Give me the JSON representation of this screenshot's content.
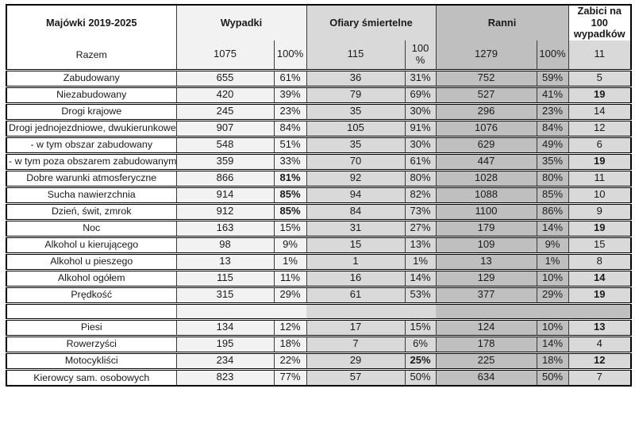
{
  "table": {
    "title_cell": "Majówki 2019-2025",
    "header": {
      "wypadki": "Wypadki",
      "ofiary": "Ofiary śmiertelne",
      "ranni": "Ranni",
      "zabici": "Zabici na 100 wypadków"
    },
    "colors": {
      "wypadki_bg": "#f2f2f2",
      "ofiary_bg": "#d9d9d9",
      "ranni_bg": "#bfbfbf",
      "zabici_bg": "#d9d9d9",
      "grid": "#3a3a3a",
      "frame": "#000000"
    },
    "rows": [
      {
        "label": "Razem",
        "wypadki": "1075",
        "wypadki_pct": "100%",
        "ofiary": "115",
        "ofiary_pct": "100\n%",
        "ranni": "1279",
        "ranni_pct": "100%",
        "zabici": "11",
        "bold": [],
        "razem": true
      },
      {
        "label": "Zabudowany",
        "wypadki": "655",
        "wypadki_pct": "61%",
        "ofiary": "36",
        "ofiary_pct": "31%",
        "ranni": "752",
        "ranni_pct": "59%",
        "zabici": "5",
        "bold": []
      },
      {
        "label": "Niezabudowany",
        "wypadki": "420",
        "wypadki_pct": "39%",
        "ofiary": "79",
        "ofiary_pct": "69%",
        "ranni": "527",
        "ranni_pct": "41%",
        "zabici": "19",
        "bold": [
          "zabici"
        ]
      },
      {
        "label": "Drogi krajowe",
        "wypadki": "245",
        "wypadki_pct": "23%",
        "ofiary": "35",
        "ofiary_pct": "30%",
        "ranni": "296",
        "ranni_pct": "23%",
        "zabici": "14",
        "bold": []
      },
      {
        "label": "Drogi jednojezdniowe, dwukierunkowe",
        "wypadki": "907",
        "wypadki_pct": "84%",
        "ofiary": "105",
        "ofiary_pct": "91%",
        "ranni": "1076",
        "ranni_pct": "84%",
        "zabici": "12",
        "bold": []
      },
      {
        "label": "- w tym obszar zabudowany",
        "wypadki": "548",
        "wypadki_pct": "51%",
        "ofiary": "35",
        "ofiary_pct": "30%",
        "ranni": "629",
        "ranni_pct": "49%",
        "zabici": "6",
        "bold": []
      },
      {
        "label": "- w tym poza obszarem zabudowanym",
        "wypadki": "359",
        "wypadki_pct": "33%",
        "ofiary": "70",
        "ofiary_pct": "61%",
        "ranni": "447",
        "ranni_pct": "35%",
        "zabici": "19",
        "bold": [
          "zabici"
        ]
      },
      {
        "label": "Dobre warunki atmosferyczne",
        "wypadki": "866",
        "wypadki_pct": "81%",
        "ofiary": "92",
        "ofiary_pct": "80%",
        "ranni": "1028",
        "ranni_pct": "80%",
        "zabici": "11",
        "bold": [
          "wypadki_pct"
        ]
      },
      {
        "label": "Sucha nawierzchnia",
        "wypadki": "914",
        "wypadki_pct": "85%",
        "ofiary": "94",
        "ofiary_pct": "82%",
        "ranni": "1088",
        "ranni_pct": "85%",
        "zabici": "10",
        "bold": [
          "wypadki_pct"
        ]
      },
      {
        "label": "Dzień, świt, zmrok",
        "wypadki": "912",
        "wypadki_pct": "85%",
        "ofiary": "84",
        "ofiary_pct": "73%",
        "ranni": "1100",
        "ranni_pct": "86%",
        "zabici": "9",
        "bold": [
          "wypadki_pct"
        ]
      },
      {
        "label": "Noc",
        "wypadki": "163",
        "wypadki_pct": "15%",
        "ofiary": "31",
        "ofiary_pct": "27%",
        "ranni": "179",
        "ranni_pct": "14%",
        "zabici": "19",
        "bold": [
          "zabici"
        ]
      },
      {
        "label": "Alkohol u kierującego",
        "wypadki": "98",
        "wypadki_pct": "9%",
        "ofiary": "15",
        "ofiary_pct": "13%",
        "ranni": "109",
        "ranni_pct": "9%",
        "zabici": "15",
        "bold": []
      },
      {
        "label": "Alkohol u pieszego",
        "wypadki": "13",
        "wypadki_pct": "1%",
        "ofiary": "1",
        "ofiary_pct": "1%",
        "ranni": "13",
        "ranni_pct": "1%",
        "zabici": "8",
        "bold": []
      },
      {
        "label": "Alkohol ogółem",
        "wypadki": "115",
        "wypadki_pct": "11%",
        "ofiary": "16",
        "ofiary_pct": "14%",
        "ranni": "129",
        "ranni_pct": "10%",
        "zabici": "14",
        "bold": [
          "zabici"
        ]
      },
      {
        "label": "Prędkość",
        "wypadki": "315",
        "wypadki_pct": "29%",
        "ofiary": "61",
        "ofiary_pct": "53%",
        "ranni": "377",
        "ranni_pct": "29%",
        "zabici": "19",
        "bold": [
          "zabici"
        ]
      },
      {
        "label": "",
        "wypadki": "",
        "wypadki_pct": "",
        "ofiary": "",
        "ofiary_pct": "",
        "ranni": "",
        "ranni_pct": "",
        "zabici": "",
        "bold": [],
        "spacer": true
      },
      {
        "label": "Piesi",
        "wypadki": "134",
        "wypadki_pct": "12%",
        "ofiary": "17",
        "ofiary_pct": "15%",
        "ranni": "124",
        "ranni_pct": "10%",
        "zabici": "13",
        "bold": [
          "zabici"
        ]
      },
      {
        "label": "Rowerzyści",
        "wypadki": "195",
        "wypadki_pct": "18%",
        "ofiary": "7",
        "ofiary_pct": "6%",
        "ranni": "178",
        "ranni_pct": "14%",
        "zabici": "4",
        "bold": []
      },
      {
        "label": "Motocykliści",
        "wypadki": "234",
        "wypadki_pct": "22%",
        "ofiary": "29",
        "ofiary_pct": "25%",
        "ranni": "225",
        "ranni_pct": "18%",
        "zabici": "12",
        "bold": [
          "ofiary_pct",
          "zabici"
        ]
      },
      {
        "label": "Kierowcy sam. osobowych",
        "wypadki": "823",
        "wypadki_pct": "77%",
        "ofiary": "57",
        "ofiary_pct": "50%",
        "ranni": "634",
        "ranni_pct": "50%",
        "zabici": "7",
        "bold": []
      }
    ]
  }
}
